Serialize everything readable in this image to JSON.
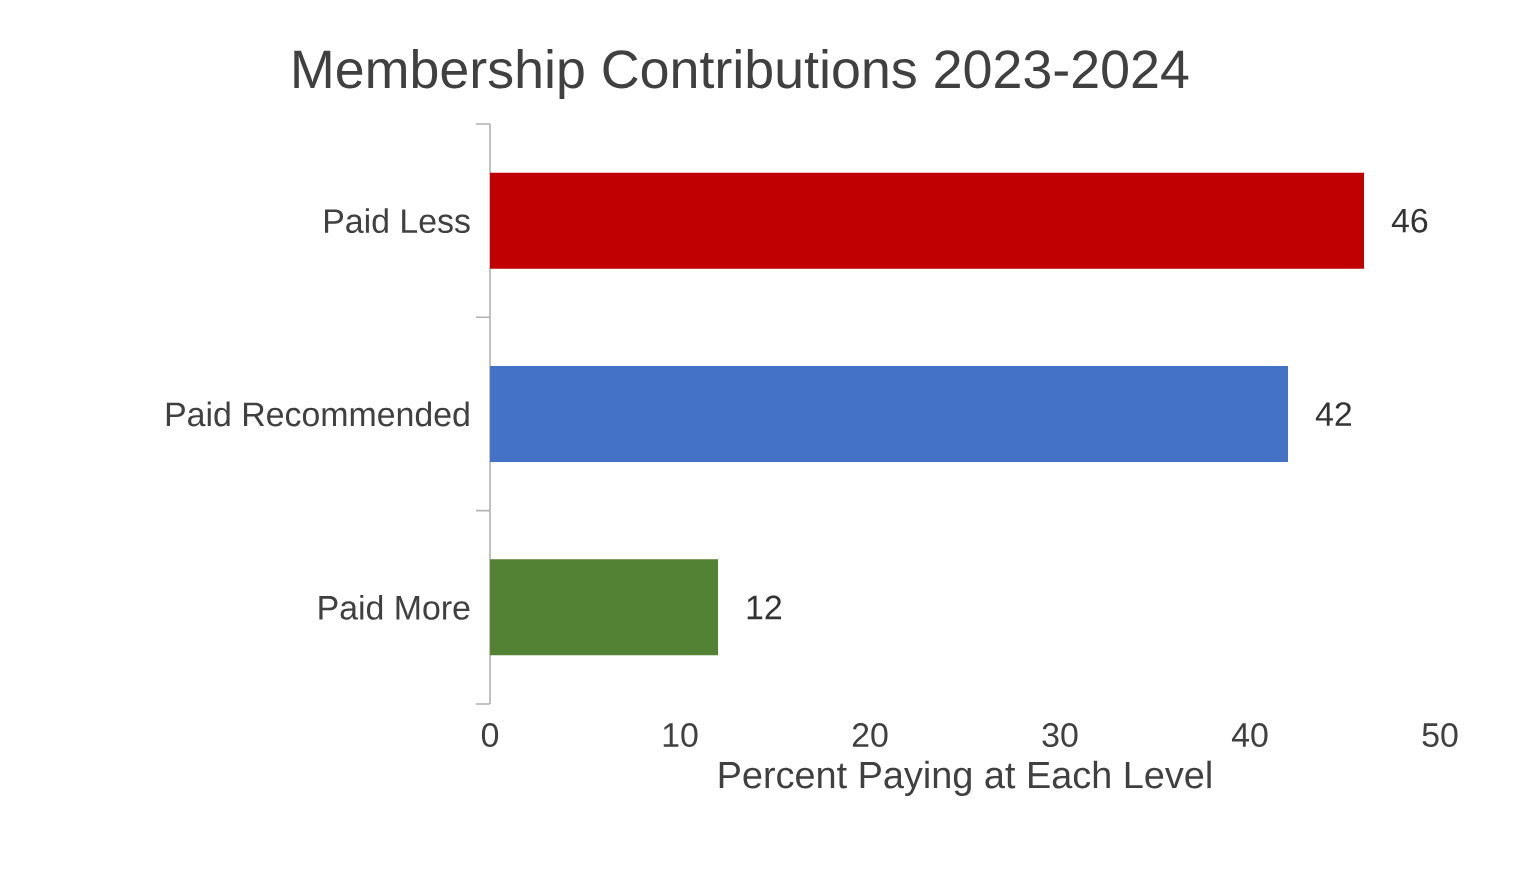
{
  "chart_data": {
    "type": "bar",
    "orientation": "horizontal",
    "title": "Membership Contributions 2023-2024",
    "xlabel": "Percent Paying at Each Level",
    "categories": [
      "Paid Less",
      "Paid Recommended",
      "Paid More"
    ],
    "values": [
      46,
      42,
      12
    ],
    "colors": [
      "#c00000",
      "#4472c4",
      "#548235"
    ],
    "xlim": [
      0,
      50
    ],
    "xticks": [
      0,
      10,
      20,
      30,
      40,
      50
    ],
    "data_labels": true
  }
}
